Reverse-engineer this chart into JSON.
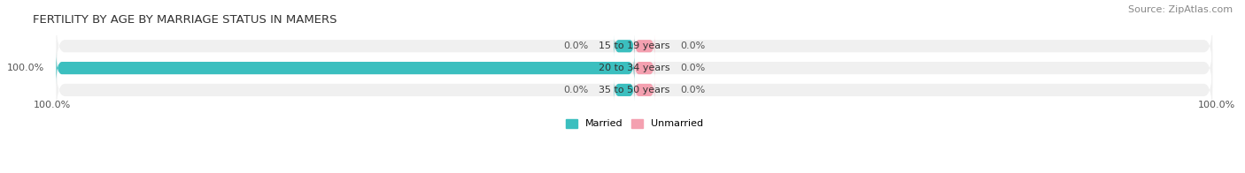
{
  "title": "FERTILITY BY AGE BY MARRIAGE STATUS IN MAMERS",
  "source": "Source: ZipAtlas.com",
  "rows": [
    {
      "label": "15 to 19 years",
      "married": 0.0,
      "unmarried": 0.0
    },
    {
      "label": "20 to 34 years",
      "married": 100.0,
      "unmarried": 0.0
    },
    {
      "label": "35 to 50 years",
      "married": 0.0,
      "unmarried": 0.0
    }
  ],
  "married_color": "#3bbfbf",
  "unmarried_color": "#f4a0b0",
  "bar_bg_color": "#e8e8e8",
  "row_bg_color": "#f0f0f0",
  "bar_height": 0.55,
  "xlim": [
    -100,
    100
  ],
  "legend_married": "Married",
  "legend_unmarried": "Unmarried",
  "title_fontsize": 9.5,
  "label_fontsize": 8,
  "source_fontsize": 8,
  "bottom_left_label": "100.0%",
  "bottom_right_label": "100.0%"
}
